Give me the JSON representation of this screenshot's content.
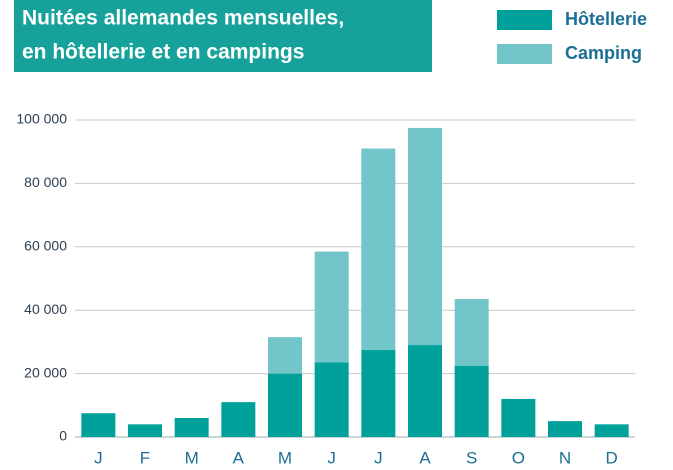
{
  "chart_data": {
    "type": "stacked_bar",
    "title": [
      "Nuitées allemandes mensuelles,",
      "en hôtellerie et en campings"
    ],
    "categories": [
      "J",
      "F",
      "M",
      "A",
      "M",
      "J",
      "J",
      "A",
      "S",
      "O",
      "N",
      "D"
    ],
    "series": [
      {
        "name": "Hôtellerie",
        "color": "#00a19b",
        "values": [
          7500,
          4000,
          6000,
          11000,
          20000,
          23500,
          27500,
          29000,
          22500,
          12000,
          5000,
          4000
        ]
      },
      {
        "name": "Camping",
        "color": "#72c5c9",
        "values": [
          0,
          0,
          0,
          0,
          11500,
          35000,
          63500,
          68500,
          21000,
          0,
          0,
          0
        ]
      }
    ],
    "ylim": [
      0,
      100000
    ],
    "yticks": [
      0,
      {
        "value": 20000,
        "label": "20 000"
      },
      {
        "value": 40000,
        "label": "40 000"
      },
      {
        "value": 60000,
        "label": "60 000"
      },
      {
        "value": 80000,
        "label": "80 000"
      },
      {
        "value": 100000,
        "label": "100 000"
      }
    ],
    "grid": true,
    "legend": "top-right"
  }
}
